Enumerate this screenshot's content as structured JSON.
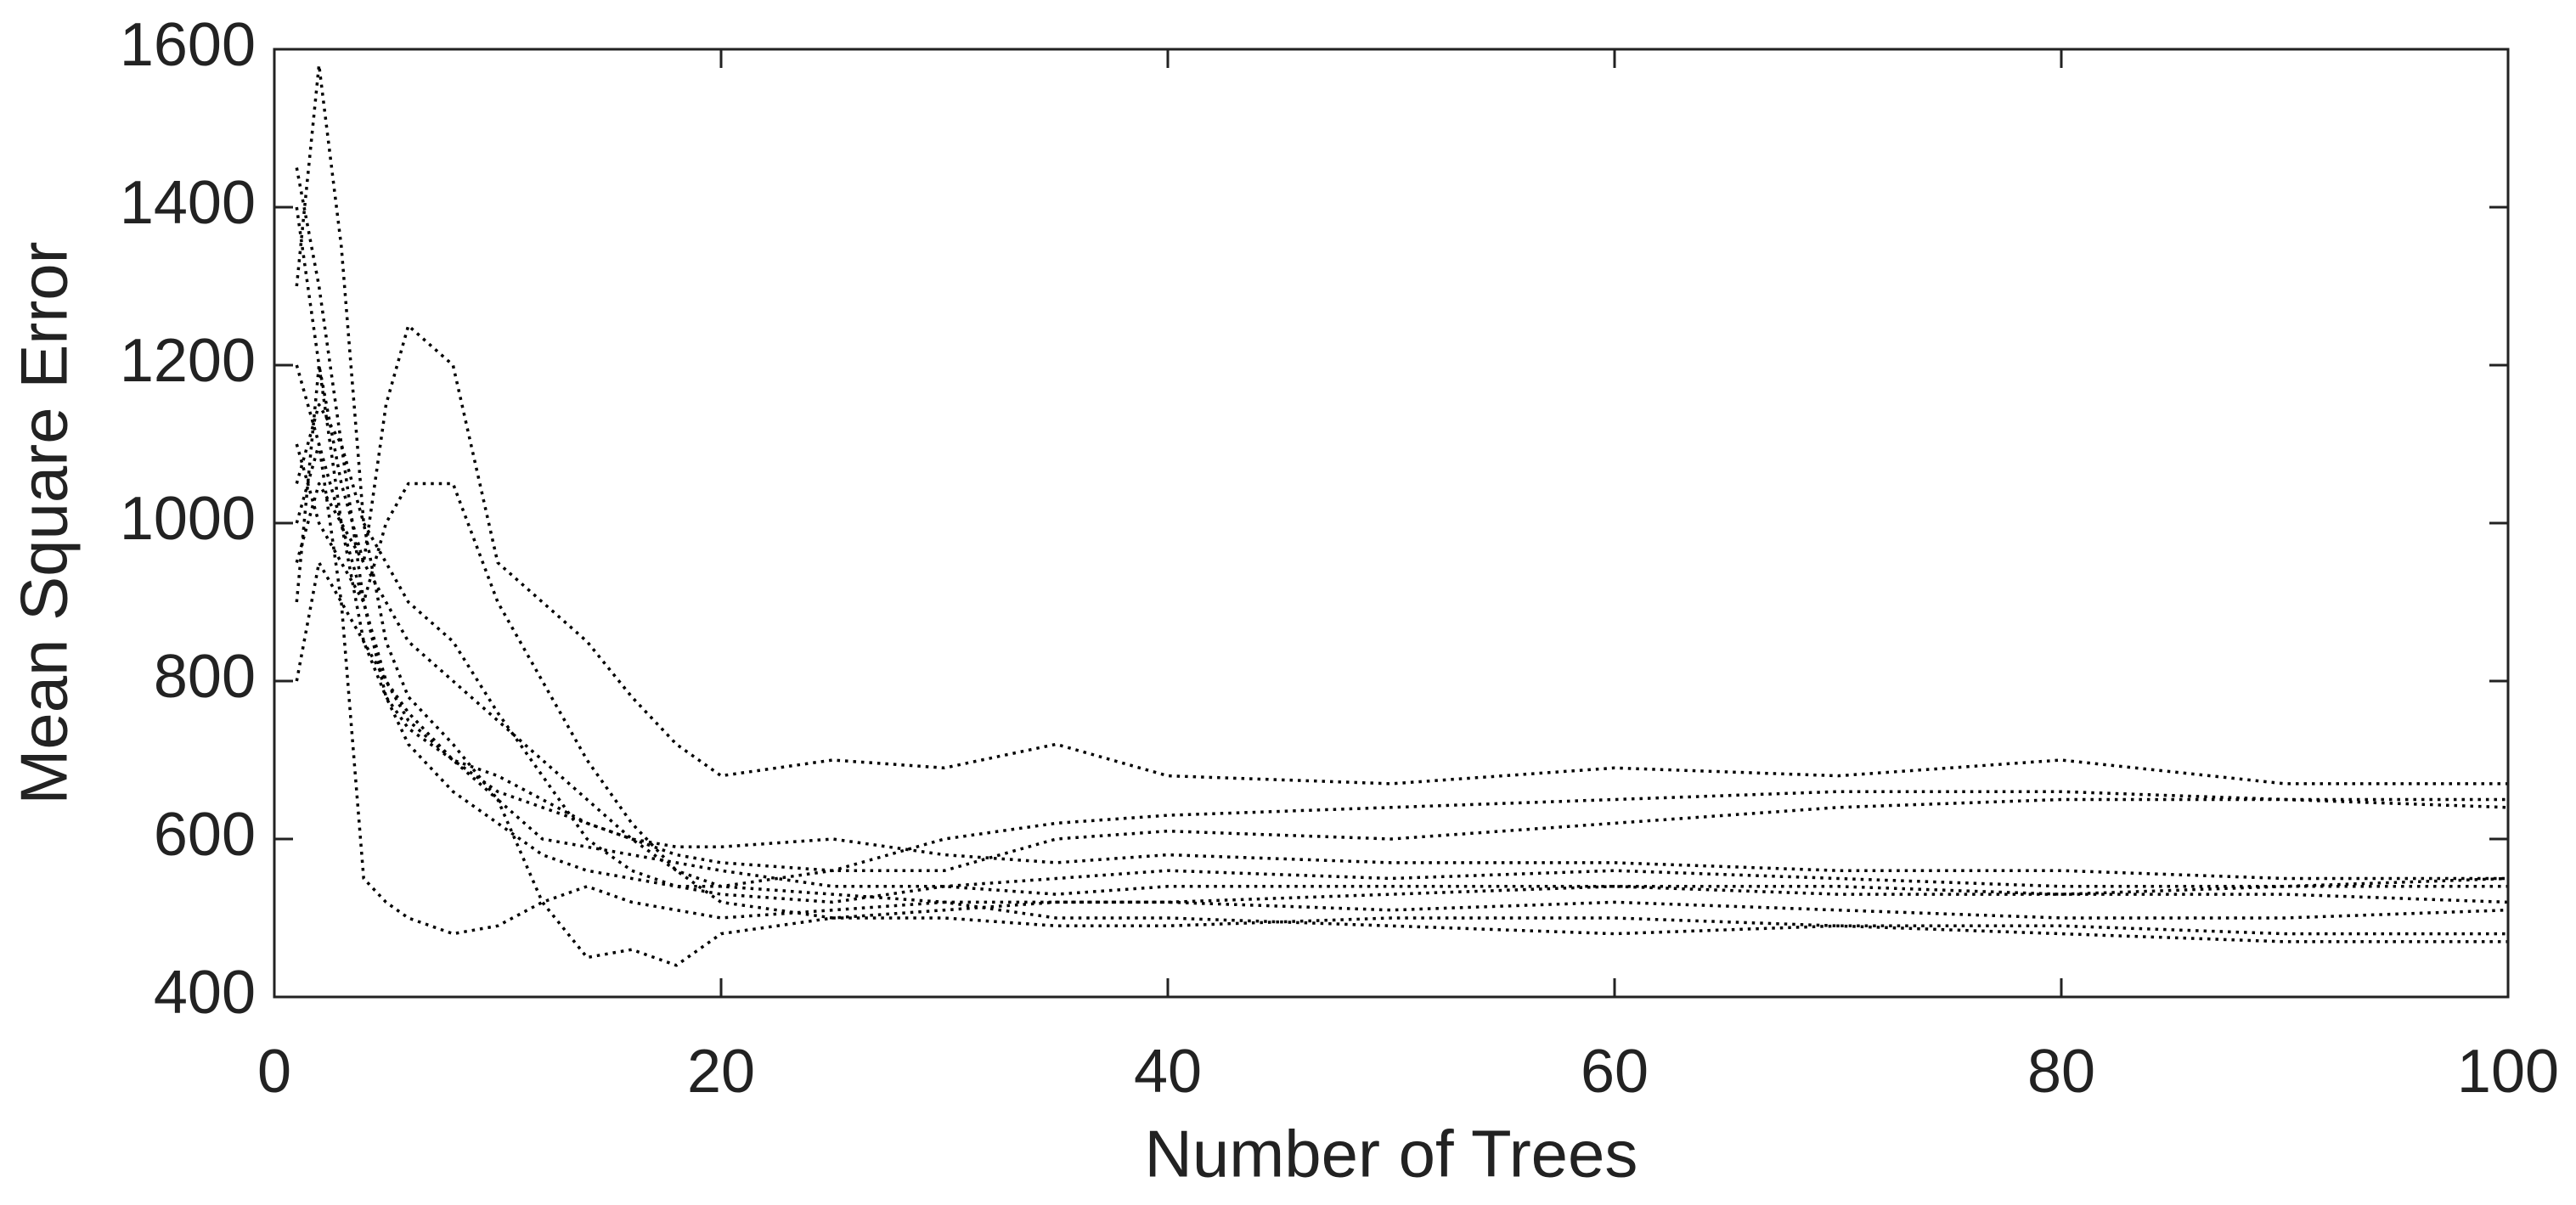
{
  "chart_data": {
    "type": "line",
    "x_label": "Number of Trees",
    "y_label": "Mean Square Error",
    "x": [
      1,
      2,
      3,
      4,
      5,
      6,
      8,
      10,
      12,
      14,
      16,
      18,
      20,
      25,
      30,
      35,
      40,
      50,
      60,
      70,
      80,
      90,
      100
    ],
    "series": [
      {
        "color": "#000000",
        "values": [
          1300,
          1580,
          1350,
          1000,
          850,
          780,
          720,
          650,
          600,
          590,
          580,
          570,
          560,
          540,
          540,
          530,
          540,
          540,
          540,
          530,
          530,
          530,
          520
        ]
      },
      {
        "color": "#000000",
        "values": [
          900,
          1200,
          1050,
          950,
          1150,
          1250,
          1200,
          950,
          900,
          850,
          780,
          720,
          680,
          700,
          690,
          720,
          680,
          670,
          690,
          680,
          700,
          670,
          670
        ]
      },
      {
        "color": "#000000",
        "values": [
          1000,
          1100,
          900,
          550,
          520,
          500,
          480,
          490,
          520,
          540,
          520,
          510,
          500,
          510,
          520,
          500,
          500,
          490,
          480,
          490,
          480,
          470,
          470
        ]
      },
      {
        "color": "#000000",
        "values": [
          1100,
          1000,
          950,
          900,
          1000,
          1050,
          1050,
          900,
          800,
          700,
          620,
          560,
          520,
          500,
          510,
          520,
          520,
          530,
          540,
          540,
          530,
          540,
          550
        ]
      },
      {
        "color": "#000000",
        "values": [
          800,
          950,
          900,
          850,
          800,
          760,
          700,
          650,
          520,
          450,
          460,
          440,
          480,
          500,
          500,
          490,
          490,
          500,
          500,
          490,
          490,
          480,
          480
        ]
      },
      {
        "color": "#000000",
        "values": [
          1200,
          1100,
          1000,
          900,
          800,
          750,
          700,
          680,
          650,
          620,
          600,
          580,
          570,
          560,
          560,
          600,
          610,
          600,
          620,
          640,
          650,
          650,
          650
        ]
      },
      {
        "color": "#000000",
        "values": [
          1400,
          1200,
          1000,
          850,
          780,
          740,
          700,
          660,
          640,
          620,
          600,
          590,
          590,
          600,
          580,
          570,
          580,
          570,
          570,
          560,
          560,
          550,
          550
        ]
      },
      {
        "color": "#000000",
        "values": [
          950,
          1050,
          1000,
          950,
          900,
          850,
          800,
          750,
          700,
          650,
          600,
          560,
          540,
          560,
          600,
          620,
          630,
          640,
          650,
          660,
          660,
          650,
          640
        ]
      },
      {
        "color": "#000000",
        "values": [
          1050,
          1150,
          1100,
          1000,
          950,
          900,
          850,
          760,
          680,
          600,
          560,
          540,
          530,
          520,
          540,
          550,
          560,
          550,
          560,
          550,
          540,
          540,
          540
        ]
      },
      {
        "color": "#000000",
        "values": [
          1450,
          1300,
          1100,
          900,
          780,
          720,
          660,
          620,
          580,
          560,
          550,
          540,
          540,
          530,
          520,
          520,
          520,
          510,
          520,
          510,
          500,
          500,
          510
        ]
      }
    ],
    "xlim": [
      0,
      100
    ],
    "xticks": [
      0,
      20,
      40,
      60,
      80,
      100
    ],
    "ylim": [
      400,
      1600
    ],
    "yticks": [
      400,
      600,
      800,
      1000,
      1200,
      1400,
      1600
    ],
    "grid": false
  }
}
